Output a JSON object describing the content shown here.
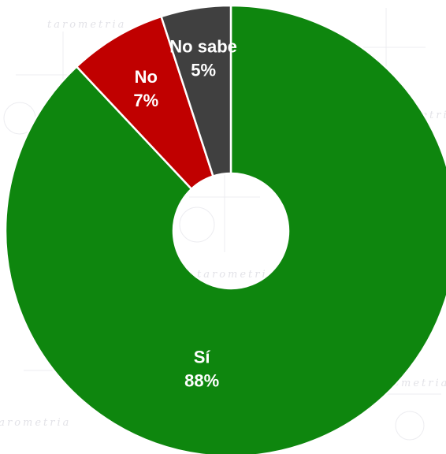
{
  "chart_data": {
    "type": "pie",
    "donut": true,
    "start_angle_deg": 0,
    "direction": "clockwise",
    "categories": [
      "Sí",
      "No",
      "No sabe"
    ],
    "values": [
      88,
      7,
      5
    ],
    "value_labels": [
      "88%",
      "7%",
      "5%"
    ],
    "colors": [
      "#0e860e",
      "#c00000",
      "#404040"
    ],
    "slice_border_color": "#ffffff",
    "title": "",
    "legend": "none"
  }
}
